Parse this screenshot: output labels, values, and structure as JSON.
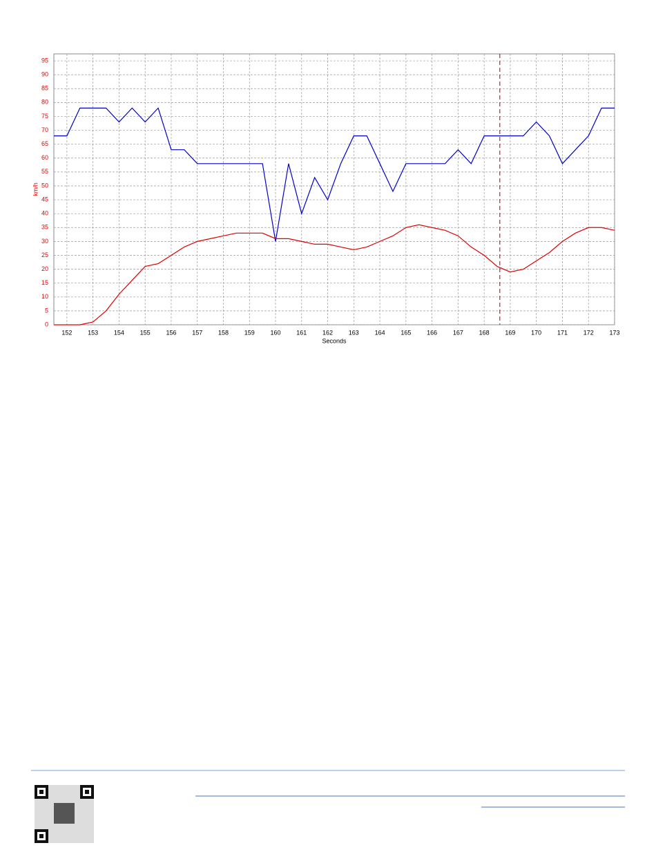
{
  "chart_data": {
    "type": "line",
    "y_label": "km/h",
    "x_label": "Seconds",
    "x": [
      151.5,
      152,
      152.5,
      153,
      153.5,
      154,
      154.5,
      155,
      155.5,
      156,
      156.5,
      157,
      157.5,
      158,
      158.5,
      159,
      159.5,
      160,
      160.5,
      161,
      161.5,
      162,
      162.5,
      163,
      163.5,
      164,
      164.5,
      165,
      165.5,
      166,
      166.5,
      167,
      167.5,
      168,
      168.5,
      169,
      169.5,
      170,
      170.5,
      171,
      171.5,
      172,
      172.5,
      173
    ],
    "series": [
      {
        "color": "#0000cc",
        "values": [
          68,
          68,
          78,
          78,
          78,
          73,
          78,
          73,
          78,
          63,
          63,
          58,
          58,
          58,
          58,
          58,
          58,
          30,
          58,
          40,
          53,
          45,
          58,
          68,
          68,
          58,
          48,
          58,
          58,
          58,
          58,
          63,
          58,
          68,
          68,
          68,
          68,
          73,
          68,
          58,
          63,
          68,
          78,
          78
        ]
      },
      {
        "color": "#e00000",
        "values": [
          0,
          0,
          0,
          1,
          5,
          11,
          16,
          21,
          22,
          25,
          28,
          30,
          31,
          32,
          33,
          33,
          33,
          31,
          31,
          30,
          29,
          29,
          28,
          27,
          28,
          30,
          32,
          35,
          36,
          35,
          34,
          32,
          28,
          25,
          21,
          19,
          20,
          23,
          26,
          30,
          33,
          35,
          35,
          34
        ]
      }
    ],
    "xlim": [
      151.5,
      173
    ],
    "ylim": [
      0,
      97.5
    ],
    "xticks": [
      152,
      153,
      154,
      155,
      156,
      157,
      158,
      159,
      160,
      161,
      162,
      163,
      164,
      165,
      166,
      167,
      168,
      169,
      170,
      171,
      172,
      173
    ],
    "yticks": [
      0,
      5,
      10,
      15,
      20,
      25,
      30,
      35,
      40,
      45,
      50,
      55,
      60,
      65,
      70,
      75,
      80,
      85,
      90,
      95
    ],
    "cursor_x": 168.6,
    "grid": true
  }
}
